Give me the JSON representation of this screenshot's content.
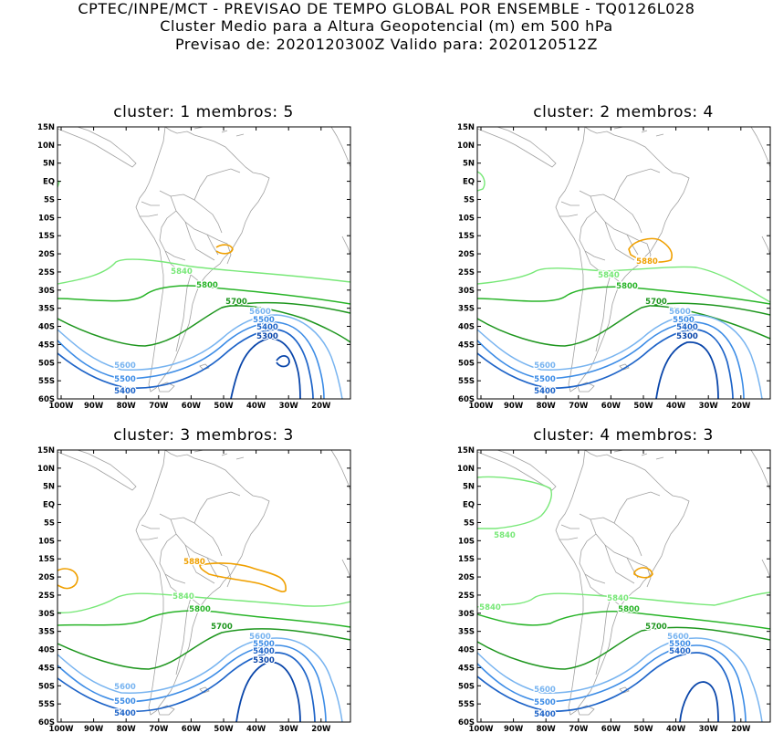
{
  "header": {
    "line1": "CPTEC/INPE/MCT - PREVISAO DE TEMPO GLOBAL POR ENSEMBLE - TQ0126L028",
    "line2": "Cluster Medio para a Altura Geopotencial (m) em 500 hPa",
    "line3": "Previsao de: 2020120300Z    Valido para: 2020120512Z"
  },
  "axes": {
    "lat_labels": [
      "15N",
      "10N",
      "5N",
      "EQ",
      "5S",
      "10S",
      "15S",
      "20S",
      "25S",
      "30S",
      "35S",
      "40S",
      "45S",
      "50S",
      "55S",
      "60S"
    ],
    "lon_labels": [
      "100W",
      "90W",
      "80W",
      "70W",
      "60W",
      "50W",
      "40W",
      "30W",
      "20W"
    ]
  },
  "colors": {
    "c5880": "#f0a000",
    "c5840": "#78e878",
    "c5800": "#28b428",
    "c5700": "#1e961e",
    "c5600": "#78b4f0",
    "c5500": "#3c8ce6",
    "c5400": "#1e64c8",
    "c5300": "#0a46aa",
    "coast": "#a0a0a0"
  },
  "panels": [
    {
      "title": "cluster:  1   membros:  5",
      "labels": [
        {
          "text": "5840",
          "level": "c5840"
        },
        {
          "text": "5800",
          "level": "c5800"
        },
        {
          "text": "5700",
          "level": "c5700"
        },
        {
          "text": "5600",
          "level": "c5600"
        },
        {
          "text": "5500",
          "level": "c5500"
        },
        {
          "text": "5400",
          "level": "c5400"
        },
        {
          "text": "5300",
          "level": "c5300"
        },
        {
          "text": "5600",
          "level": "c5600"
        },
        {
          "text": "5500",
          "level": "c5500"
        },
        {
          "text": "5400",
          "level": "c5400"
        }
      ]
    },
    {
      "title": "cluster:  2   membros:  4",
      "labels": [
        {
          "text": "5880",
          "level": "c5880"
        },
        {
          "text": "5840",
          "level": "c5840"
        },
        {
          "text": "5800",
          "level": "c5800"
        },
        {
          "text": "5700",
          "level": "c5700"
        },
        {
          "text": "5600",
          "level": "c5600"
        },
        {
          "text": "5500",
          "level": "c5500"
        },
        {
          "text": "5400",
          "level": "c5400"
        },
        {
          "text": "5300",
          "level": "c5300"
        },
        {
          "text": "5600",
          "level": "c5600"
        },
        {
          "text": "5500",
          "level": "c5500"
        },
        {
          "text": "5400",
          "level": "c5400"
        }
      ]
    },
    {
      "title": "cluster:  3   membros:  3",
      "labels": [
        {
          "text": "5880",
          "level": "c5880"
        },
        {
          "text": "5840",
          "level": "c5840"
        },
        {
          "text": "5800",
          "level": "c5800"
        },
        {
          "text": "5700",
          "level": "c5700"
        },
        {
          "text": "5600",
          "level": "c5600"
        },
        {
          "text": "5500",
          "level": "c5500"
        },
        {
          "text": "5400",
          "level": "c5400"
        },
        {
          "text": "5300",
          "level": "c5300"
        },
        {
          "text": "5600",
          "level": "c5600"
        },
        {
          "text": "5500",
          "level": "c5500"
        },
        {
          "text": "5400",
          "level": "c5400"
        }
      ]
    },
    {
      "title": "cluster:  4   membros:  3",
      "labels": [
        {
          "text": "5840",
          "level": "c5840"
        },
        {
          "text": "5840",
          "level": "c5840"
        },
        {
          "text": "5840",
          "level": "c5840"
        },
        {
          "text": "5800",
          "level": "c5800"
        },
        {
          "text": "5700",
          "level": "c5700"
        },
        {
          "text": "5600",
          "level": "c5600"
        },
        {
          "text": "5500",
          "level": "c5500"
        },
        {
          "text": "5400",
          "level": "c5400"
        },
        {
          "text": "5600",
          "level": "c5600"
        },
        {
          "text": "5500",
          "level": "c5500"
        },
        {
          "text": "5400",
          "level": "c5400"
        }
      ]
    }
  ]
}
